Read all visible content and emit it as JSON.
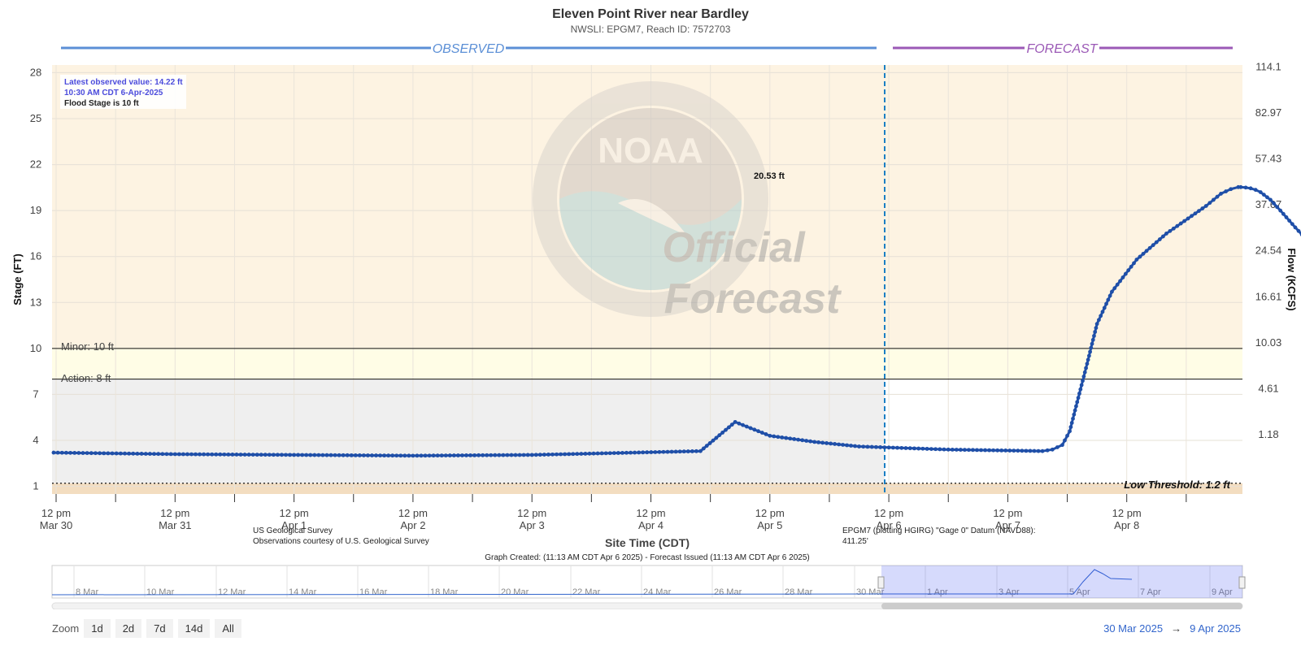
{
  "header": {
    "title": "Eleven Point River near Bardley",
    "subtitle": "NWSLI: EPGM7, Reach ID: 7572703"
  },
  "sections": {
    "observed": "OBSERVED",
    "forecast": "FORECAST"
  },
  "info_box": {
    "latest": "Latest observed value: 14.22 ft",
    "time": "10:30 AM CDT 6-Apr-2025",
    "flood_stage": "Flood Stage is 10 ft"
  },
  "watermark": {
    "line1": "Official",
    "line2": "Forecast",
    "logo_text": "NOAA"
  },
  "axes": {
    "left_label": "Stage (FT)",
    "right_label": "Flow (KCFS)",
    "x_label": "Site Time (CDT)"
  },
  "thresholds": {
    "minor_label": "Minor: 10 ft",
    "action_label": "Action: 8 ft",
    "low_label": "Low Threshold: 1.2 ft"
  },
  "peak_label": "20.53 ft",
  "footer": {
    "source1": "US Geological Survey",
    "source2": "Observations courtesy of U.S. Geological Survey",
    "datum1": "EPGM7 (plotting HGIRG) \"Gage 0\" Datum (NAVD88):",
    "datum2": "411.25'",
    "created": "Graph Created: (11:13 AM CDT Apr 6 2025) - Forecast Issued (11:13 AM CDT Apr 6 2025)"
  },
  "navigator": {
    "ticks": [
      "8 Mar",
      "10 Mar",
      "12 Mar",
      "14 Mar",
      "16 Mar",
      "18 Mar",
      "20 Mar",
      "22 Mar",
      "24 Mar",
      "26 Mar",
      "28 Mar",
      "30 Mar",
      "1 Apr",
      "3 Apr",
      "5 Apr",
      "7 Apr",
      "9 Apr"
    ]
  },
  "zoom": {
    "label": "Zoom",
    "buttons": [
      "1d",
      "2d",
      "7d",
      "14d",
      "All"
    ]
  },
  "range": {
    "from": "30 Mar 2025",
    "arrow": "→",
    "to": "9 Apr 2025"
  },
  "colors": {
    "series": "#1f4fa8",
    "observed_line": "#5b8fd6",
    "forecast_line": "#9b59b6",
    "minor_zone": "#fdf3e2",
    "action_zone": "#fffde6",
    "normal_zone": "#efefef",
    "forecast_divider": "#1a7fc4"
  },
  "chart_data": {
    "type": "line",
    "title": "Eleven Point River near Bardley",
    "xlabel": "Site Time (CDT)",
    "ylabel": "Stage (FT)",
    "y2label": "Flow (KCFS)",
    "ylim": [
      0.5,
      28.5
    ],
    "left_ticks": [
      28,
      25,
      22,
      19,
      16,
      13,
      10,
      7,
      4,
      1
    ],
    "right_ticks": [
      "114.1",
      "82.97",
      "57.43",
      "37.67",
      "24.54",
      "16.61",
      "10.03",
      "4.61",
      "1.18"
    ],
    "x_ticks": [
      {
        "top": "12 pm",
        "bottom": "Mar 30"
      },
      {
        "top": "12 pm",
        "bottom": "Mar 31"
      },
      {
        "top": "12 pm",
        "bottom": "Apr 1"
      },
      {
        "top": "12 pm",
        "bottom": "Apr 2"
      },
      {
        "top": "12 pm",
        "bottom": "Apr 3"
      },
      {
        "top": "12 pm",
        "bottom": "Apr 4"
      },
      {
        "top": "12 pm",
        "bottom": "Apr 5"
      },
      {
        "top": "12 pm",
        "bottom": "Apr 6"
      },
      {
        "top": "12 pm",
        "bottom": "Apr 7"
      },
      {
        "top": "12 pm",
        "bottom": "Apr 8"
      }
    ],
    "thresholds": {
      "minor": 10,
      "action": 8,
      "low": 1.2
    },
    "series": [
      {
        "name": "Observed stage",
        "x_hours_from_Mar30_12pm": [
          -0.5,
          24,
          48,
          72,
          96,
          130,
          137,
          144,
          153,
          162,
          180,
          199,
          201,
          203,
          204.5,
          206,
          208,
          210,
          213,
          218,
          224,
          232,
          235,
          237,
          238.5,
          239,
          240,
          241,
          242,
          243,
          245,
          247,
          250,
          252,
          255,
          258,
          261,
          264,
          268,
          272,
          276,
          280,
          282.5
        ],
        "values": [
          3.2,
          3.1,
          3.05,
          3.0,
          3.05,
          3.3,
          5.2,
          4.3,
          3.9,
          3.6,
          3.4,
          3.3,
          3.4,
          3.7,
          4.6,
          6.5,
          9.0,
          11.6,
          13.7,
          15.8,
          17.5,
          19.3,
          20.1,
          20.4,
          20.53,
          20.53,
          20.5,
          20.45,
          20.35,
          20.2,
          19.7,
          19.0,
          17.9,
          17.2,
          16.4,
          15.7,
          15.0,
          14.8,
          14.6,
          14.5,
          14.4,
          14.35,
          14.22
        ]
      }
    ],
    "peak": {
      "value": 20.53,
      "label": "20.53 ft"
    }
  }
}
